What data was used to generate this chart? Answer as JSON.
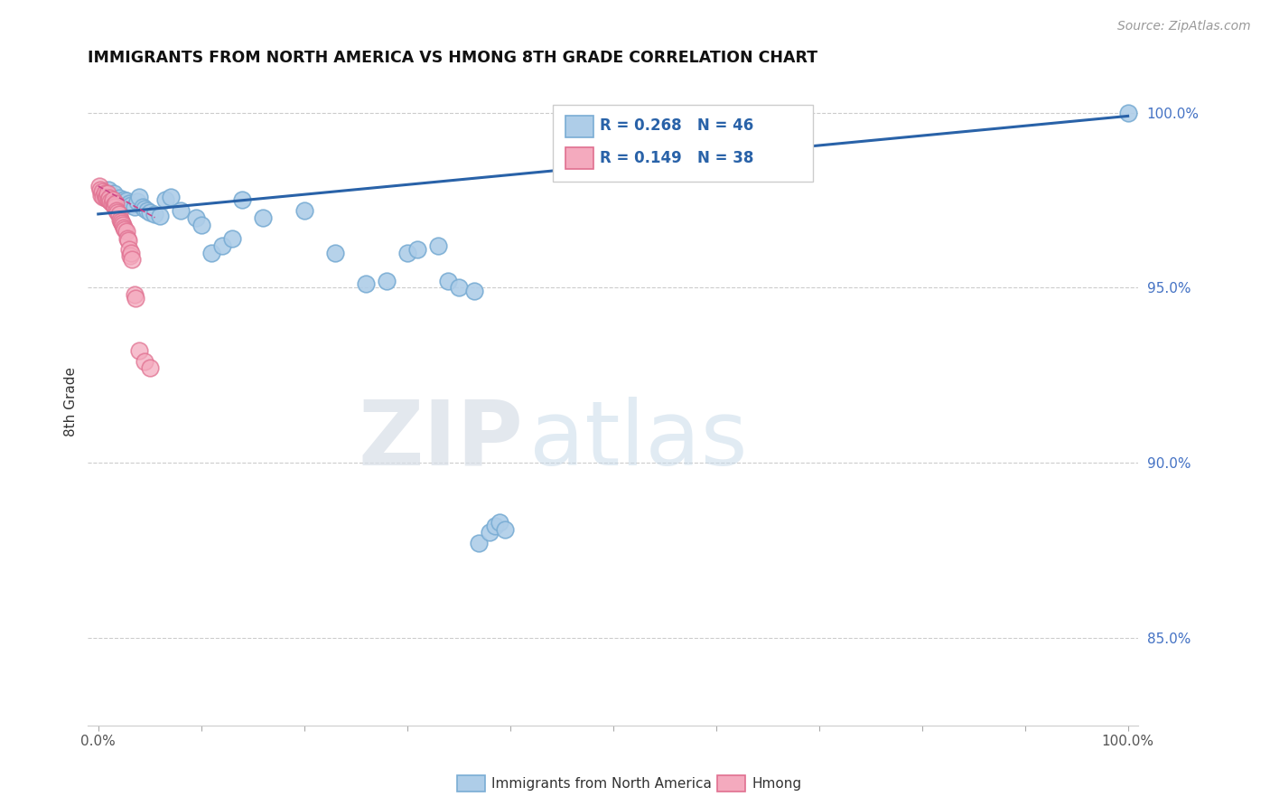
{
  "title": "IMMIGRANTS FROM NORTH AMERICA VS HMONG 8TH GRADE CORRELATION CHART",
  "source": "Source: ZipAtlas.com",
  "ylabel": "8th Grade",
  "ytick_labels": [
    "100.0%",
    "95.0%",
    "90.0%",
    "85.0%"
  ],
  "ytick_vals": [
    1.0,
    0.95,
    0.9,
    0.85
  ],
  "legend_blue_label": "Immigrants from North America",
  "legend_pink_label": "Hmong",
  "legend_r_blue": "R = 0.268",
  "legend_n_blue": "N = 46",
  "legend_r_pink": "R = 0.149",
  "legend_n_pink": "N = 38",
  "blue_color": "#aecde8",
  "blue_edge_color": "#7aadd4",
  "pink_color": "#f4aabe",
  "pink_edge_color": "#e07090",
  "trend_color": "#2962a8",
  "pink_trend_color": "#cc4488",
  "blue_scatter_x": [
    0.005,
    0.01,
    0.012,
    0.015,
    0.018,
    0.02,
    0.022,
    0.025,
    0.027,
    0.03,
    0.032,
    0.035,
    0.038,
    0.04,
    0.043,
    0.045,
    0.048,
    0.05,
    0.055,
    0.06,
    0.065,
    0.07,
    0.08,
    0.095,
    0.1,
    0.11,
    0.12,
    0.13,
    0.14,
    0.16,
    0.2,
    0.23,
    0.26,
    0.28,
    0.3,
    0.31,
    0.33,
    0.34,
    0.35,
    0.365,
    0.37,
    0.38,
    0.385,
    0.39,
    0.395,
    1.0
  ],
  "blue_scatter_y": [
    0.9775,
    0.978,
    0.976,
    0.977,
    0.975,
    0.9755,
    0.9745,
    0.975,
    0.9748,
    0.974,
    0.9735,
    0.973,
    0.9745,
    0.976,
    0.973,
    0.9725,
    0.972,
    0.9715,
    0.971,
    0.9705,
    0.975,
    0.976,
    0.972,
    0.97,
    0.968,
    0.96,
    0.962,
    0.964,
    0.975,
    0.97,
    0.972,
    0.96,
    0.951,
    0.952,
    0.96,
    0.961,
    0.962,
    0.952,
    0.95,
    0.949,
    0.877,
    0.88,
    0.882,
    0.883,
    0.881,
    1.0
  ],
  "pink_scatter_x": [
    0.001,
    0.002,
    0.003,
    0.004,
    0.005,
    0.006,
    0.007,
    0.008,
    0.009,
    0.01,
    0.011,
    0.012,
    0.013,
    0.014,
    0.015,
    0.016,
    0.017,
    0.018,
    0.019,
    0.02,
    0.021,
    0.022,
    0.023,
    0.024,
    0.025,
    0.026,
    0.027,
    0.028,
    0.029,
    0.03,
    0.031,
    0.032,
    0.033,
    0.035,
    0.036,
    0.04,
    0.045,
    0.05
  ],
  "pink_scatter_y": [
    0.979,
    0.978,
    0.9765,
    0.9775,
    0.976,
    0.977,
    0.9755,
    0.976,
    0.977,
    0.975,
    0.9755,
    0.9745,
    0.974,
    0.975,
    0.9735,
    0.973,
    0.974,
    0.972,
    0.9715,
    0.971,
    0.9695,
    0.969,
    0.9685,
    0.968,
    0.967,
    0.9665,
    0.966,
    0.964,
    0.9635,
    0.961,
    0.959,
    0.96,
    0.958,
    0.948,
    0.947,
    0.932,
    0.929,
    0.927
  ],
  "blue_trend_x0": 0.0,
  "blue_trend_x1": 1.0,
  "blue_trend_y0": 0.971,
  "blue_trend_y1": 0.999,
  "pink_trend_x0": 0.0,
  "pink_trend_x1": 0.055,
  "pink_trend_y0": 0.979,
  "pink_trend_y1": 0.97,
  "xlim": [
    -0.01,
    1.01
  ],
  "ylim": [
    0.825,
    1.01
  ],
  "watermark_zip": "ZIP",
  "watermark_atlas": "atlas",
  "xtick_positions": [
    0.0,
    0.1,
    0.2,
    0.3,
    0.4,
    0.5,
    0.6,
    0.7,
    0.8,
    0.9,
    1.0
  ],
  "xtick_labels": [
    "0.0%",
    "",
    "",
    "",
    "",
    "",
    "",
    "",
    "",
    "",
    "100.0%"
  ]
}
